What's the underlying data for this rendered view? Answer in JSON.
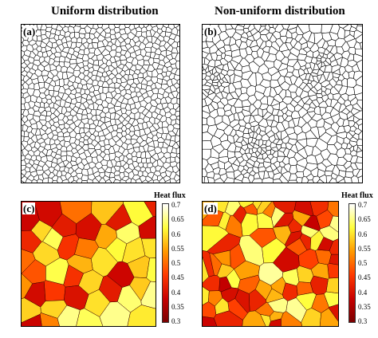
{
  "titles": {
    "uniform": "Uniform distribution",
    "nonuniform": "Non-uniform distribution"
  },
  "panels": {
    "a": "(a)",
    "b": "(b)",
    "c": "(c)",
    "d": "(d)"
  },
  "colorbar": {
    "title": "Heat flux",
    "ticks": [
      "0.7",
      "0.65",
      "0.6",
      "0.55",
      "0.5",
      "0.45",
      "0.4",
      "0.35",
      "0.3"
    ],
    "min": 0.3,
    "max": 0.7,
    "colors": [
      "#7a0000",
      "#c80000",
      "#ff3a00",
      "#ff9a00",
      "#ffff3c",
      "#ffffff"
    ]
  }
}
